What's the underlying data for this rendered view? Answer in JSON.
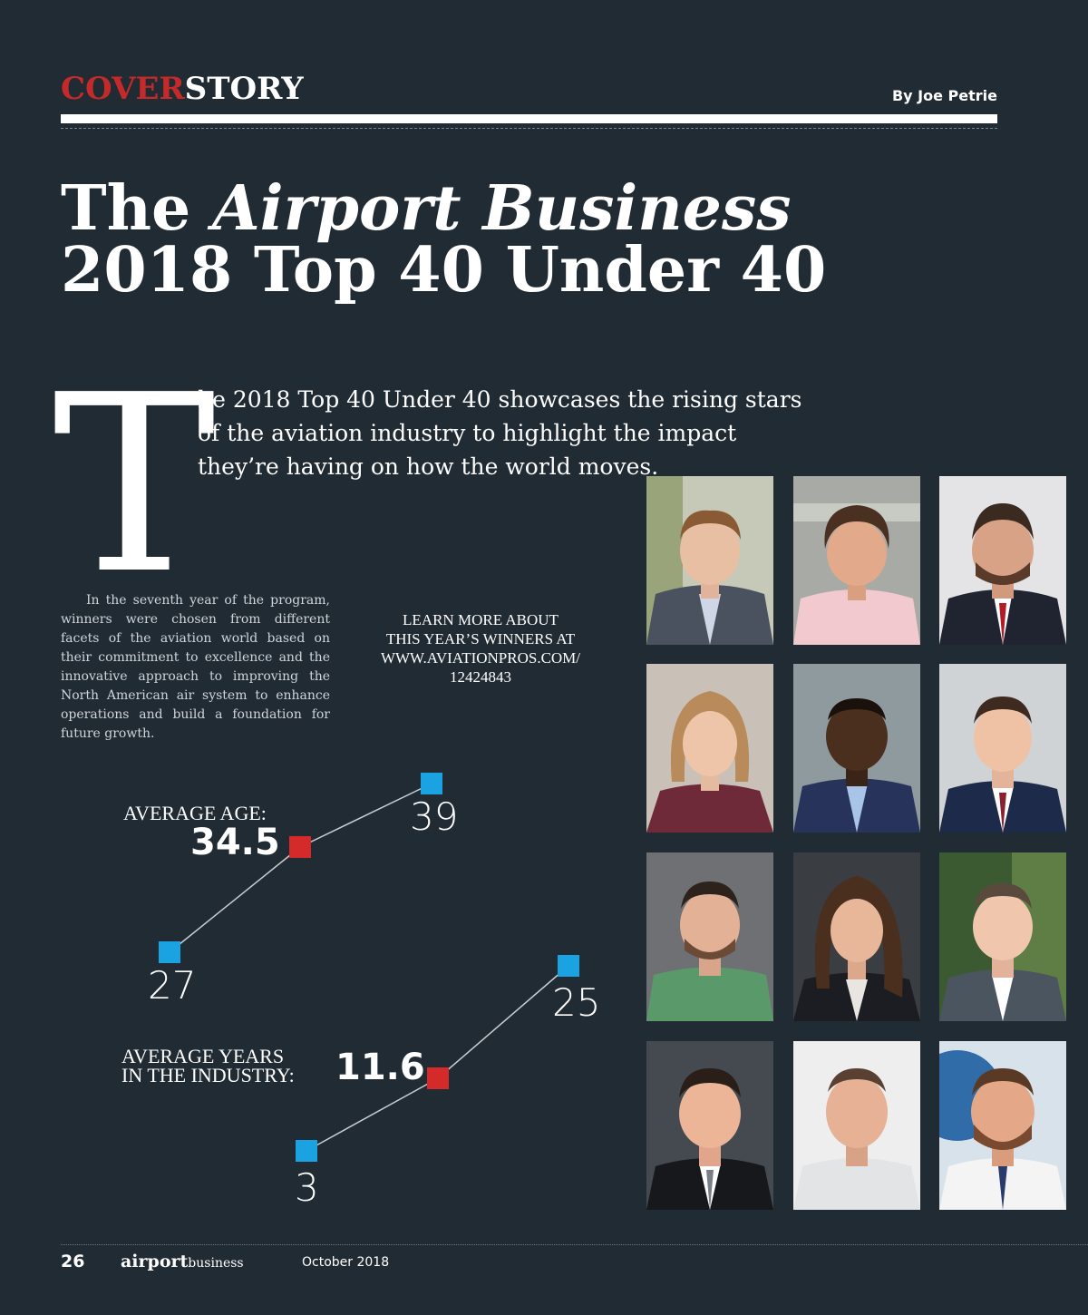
{
  "header": {
    "section_red": "COVER",
    "section_white": "STORY",
    "byline": "By Joe Petrie"
  },
  "title": {
    "line1_plain": "The ",
    "line1_italic": "Airport Business",
    "line2": "2018 Top 40 Under 40"
  },
  "intro": {
    "drop_cap": "T",
    "lede": "he 2018 Top 40 Under 40 showcases the rising stars of the aviation industry to highlight the impact they’re having on how the world moves.",
    "body": "In the seventh year of the program, winners were chosen from different facets of the aviation world based on their commitment to excellence and the innovative approach to improving the North American air system to enhance operations and build a foundation for future growth."
  },
  "learn_more": {
    "line1": "LEARN MORE ABOUT",
    "line2": "THIS YEAR’S WINNERS AT",
    "line3": "WWW.AVIATIONPROS.COM/",
    "line4": "12424843"
  },
  "stats": {
    "age": {
      "label": "AVERAGE AGE:",
      "value": "34.5",
      "min": "27",
      "max": "39"
    },
    "years": {
      "label_line1": "AVERAGE YEARS",
      "label_line2": "IN THE INDUSTRY:",
      "value": "11.6",
      "min": "3",
      "max": "25"
    }
  },
  "colors": {
    "background": "#212b33",
    "accent_red": "#c52a2a",
    "marker_blue": "#1aa3e0",
    "marker_red": "#d42a2a"
  },
  "photos": [
    {
      "name": "headshot-1"
    },
    {
      "name": "headshot-2"
    },
    {
      "name": "headshot-3"
    },
    {
      "name": "headshot-4"
    },
    {
      "name": "headshot-5"
    },
    {
      "name": "headshot-6"
    },
    {
      "name": "headshot-7"
    },
    {
      "name": "headshot-8"
    },
    {
      "name": "headshot-9"
    },
    {
      "name": "headshot-10"
    },
    {
      "name": "headshot-11"
    },
    {
      "name": "headshot-12"
    }
  ],
  "footer": {
    "page_number": "26",
    "brand_bold": "airport",
    "brand_light": "business",
    "date": "October 2018"
  }
}
